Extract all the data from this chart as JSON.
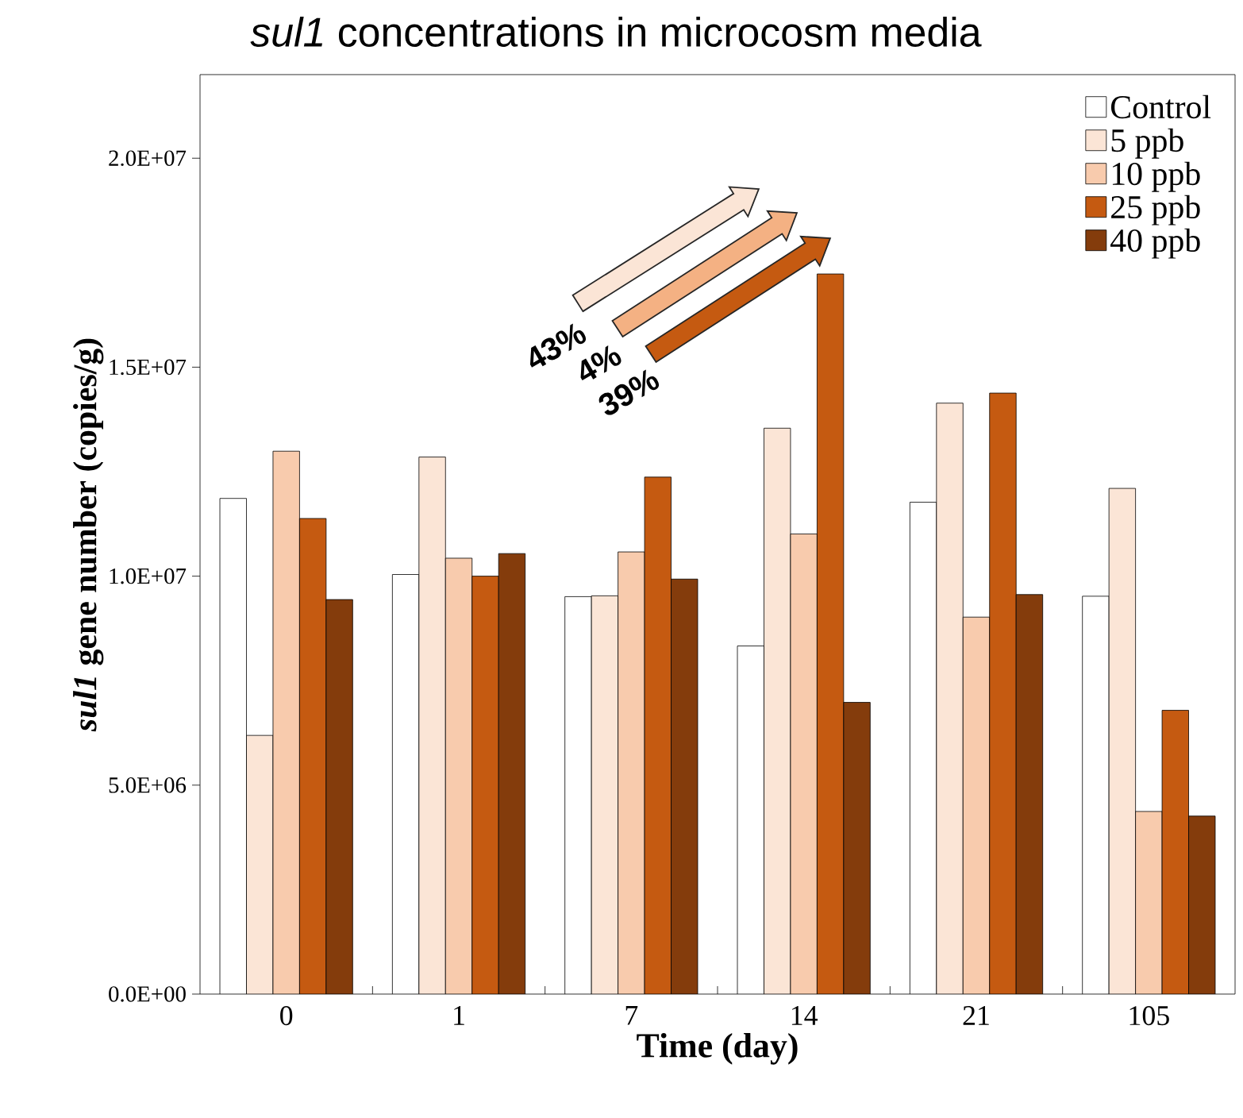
{
  "chart_data": {
    "type": "bar",
    "title": "*sul1* concentrations in microcosm media",
    "xlabel": "Time (day)",
    "ylabel": "*sul1* gene number (copies/g)",
    "categories": [
      "0",
      "1",
      "7",
      "14",
      "21",
      "105"
    ],
    "series": [
      {
        "name": "Control",
        "color": "#ffffff",
        "values": [
          11860000,
          10040000,
          9510000,
          8330000,
          11770000,
          9520000
        ]
      },
      {
        "name": "5 ppb",
        "color": "#fbe5d6",
        "values": [
          6190000,
          12850000,
          9530000,
          13540000,
          14140000,
          12100000
        ]
      },
      {
        "name": "10 ppb",
        "color": "#f8cbad",
        "values": [
          12990000,
          10430000,
          10580000,
          11010000,
          9020000,
          4370000
        ]
      },
      {
        "name": "25 ppb",
        "color": "#c55a11",
        "values": [
          11380000,
          10000000,
          12370000,
          17230000,
          14380000,
          6790000
        ]
      },
      {
        "name": "40 ppb",
        "color": "#843c0c",
        "values": [
          9440000,
          10540000,
          9930000,
          6980000,
          9560000,
          4260000
        ]
      }
    ],
    "ylim": [
      0,
      22000000
    ],
    "yticks": [
      {
        "value": 0,
        "label": "0.0E+00"
      },
      {
        "value": 5000000,
        "label": "5.0E+06"
      },
      {
        "value": 10000000,
        "label": "1.0E+07"
      },
      {
        "value": 15000000,
        "label": "1.5E+07"
      },
      {
        "value": 20000000,
        "label": "2.0E+07"
      }
    ],
    "legend": "top right",
    "annotations": [
      "43%",
      "4%",
      "39%"
    ]
  }
}
